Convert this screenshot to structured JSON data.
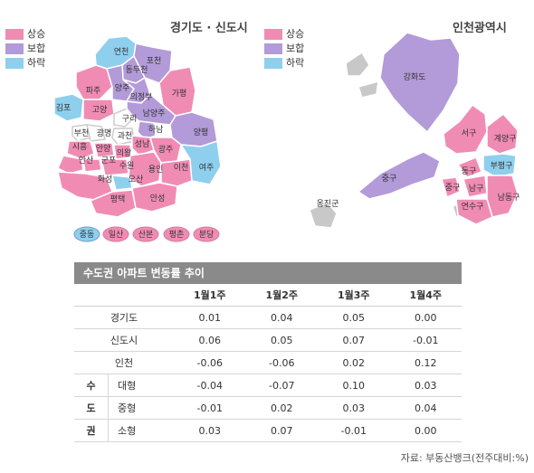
{
  "legend_left": {
    "items": [
      {
        "label": "상승",
        "color": "#f08cb4"
      },
      {
        "label": "보합",
        "color": "#b39ad8"
      },
      {
        "label": "하락",
        "color": "#8ecfee"
      }
    ]
  },
  "legend_right": {
    "items": [
      {
        "label": "상승",
        "color": "#f08cb4"
      },
      {
        "label": "보합",
        "color": "#b39ad8"
      },
      {
        "label": "하락",
        "color": "#8ecfee"
      }
    ]
  },
  "map_left": {
    "title": "경기도 · 신도시",
    "regions": [
      "연천",
      "포천",
      "동두천",
      "파주",
      "양주",
      "의정부",
      "가평",
      "김포",
      "고양",
      "구리",
      "남양주",
      "부천",
      "광명",
      "과천",
      "하남",
      "양평",
      "시흥",
      "안양",
      "의왕",
      "성남",
      "광주",
      "안산",
      "군포",
      "수원",
      "용인",
      "이천",
      "여주",
      "화성",
      "오산",
      "평택",
      "안성"
    ],
    "newtowns": [
      "중동",
      "일산",
      "산본",
      "평촌",
      "분당"
    ]
  },
  "map_right": {
    "title": "인천광역시",
    "regions": [
      "강화도",
      "서구",
      "계양구",
      "동구",
      "부평구",
      "중구",
      "남구",
      "남동구",
      "연수구",
      "옹진군"
    ]
  },
  "table": {
    "title": "수도권 아파트 변동률 추이",
    "columns": [
      "1월1주",
      "1월2주",
      "1월3주",
      "1월4주"
    ],
    "rows": [
      {
        "label": "경기도",
        "values": [
          "0.01",
          "0.04",
          "0.05",
          "0.00"
        ]
      },
      {
        "label": "신도시",
        "values": [
          "0.06",
          "0.05",
          "0.07",
          "-0.01"
        ]
      },
      {
        "label": "인천",
        "values": [
          "-0.06",
          "-0.06",
          "0.02",
          "0.12"
        ]
      }
    ],
    "group_label": [
      "수",
      "도",
      "권"
    ],
    "group_rows": [
      {
        "label": "대형",
        "values": [
          "-0.04",
          "-0.07",
          "0.10",
          "0.03"
        ]
      },
      {
        "label": "중형",
        "values": [
          "-0.01",
          "0.02",
          "0.03",
          "0.04"
        ]
      },
      {
        "label": "소형",
        "values": [
          "0.03",
          "0.07",
          "-0.01",
          "0.00"
        ]
      }
    ]
  },
  "source": "자료: 부동산뱅크(전주대비:%)"
}
